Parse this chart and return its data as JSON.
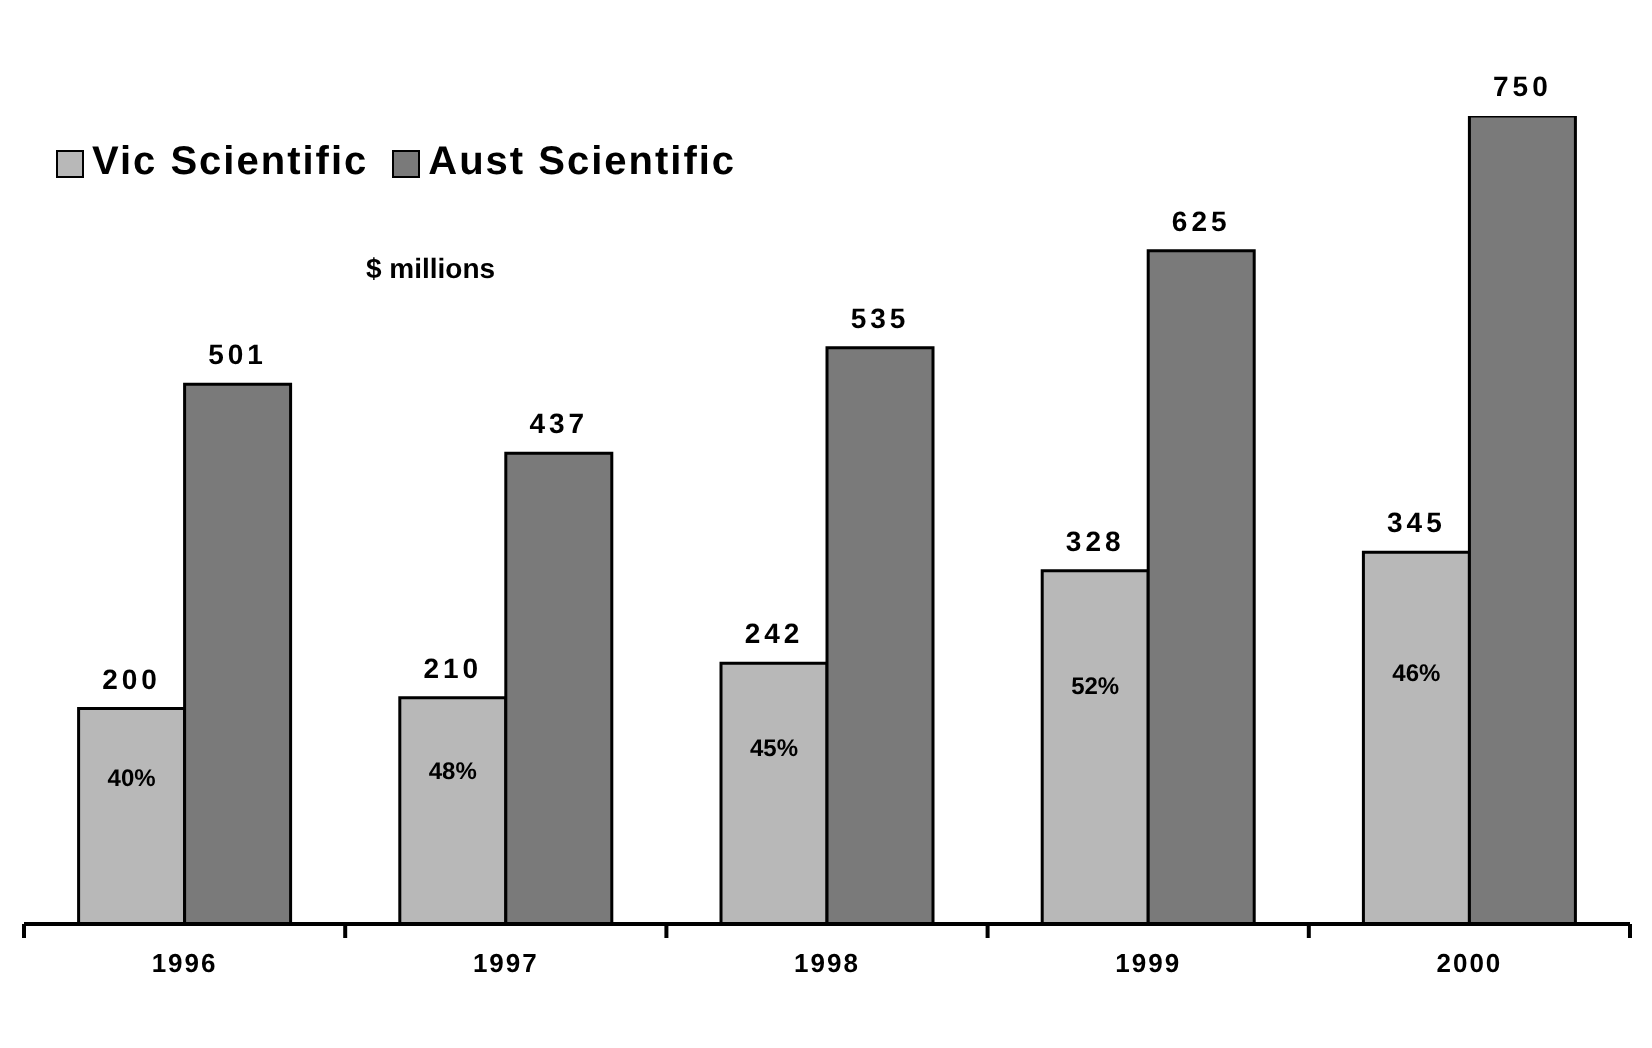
{
  "chart_data": {
    "type": "bar",
    "subtitle": "$ millions",
    "categories": [
      "1996",
      "1997",
      "1998",
      "1999",
      "2000"
    ],
    "series": [
      {
        "name": "Vic Scientific",
        "color": "#b8b8b8",
        "values": [
          200,
          210,
          242,
          328,
          345
        ]
      },
      {
        "name": "Aust Scientific",
        "color": "#7a7a7a",
        "values": [
          501,
          437,
          535,
          625,
          750
        ]
      }
    ],
    "annotations": [
      "40%",
      "48%",
      "45%",
      "52%",
      "46%"
    ],
    "data_labels": true,
    "legend": "top left",
    "grid": false
  }
}
